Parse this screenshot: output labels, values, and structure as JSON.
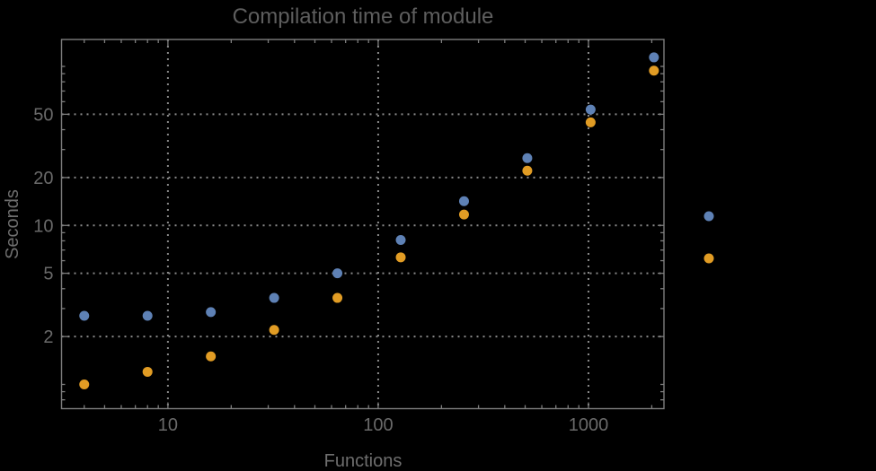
{
  "title": "Compilation time of module",
  "colors": {
    "background": "#000000",
    "frame": "#7e7e7e",
    "grid": "#8a8a8a",
    "title_text": "#5e5e5e",
    "tick_label_text": "#6a6a6a",
    "axis_label_text": "#6e6e6e",
    "series_blue": "#5E81B5",
    "series_orange": "#E19C24"
  },
  "chart_data": {
    "type": "scatter",
    "title": "Compilation time of module",
    "xlabel": "Functions",
    "ylabel": "Seconds",
    "x_scale": "log",
    "y_scale": "log",
    "xlim": [
      3.12,
      2286
    ],
    "ylim": [
      0.704,
      147.7
    ],
    "grid": {
      "style": "dotted",
      "x_values": [
        10,
        100,
        1000
      ],
      "y_values": [
        2,
        5,
        10,
        20,
        50
      ]
    },
    "x": [
      4,
      8,
      16,
      32,
      64,
      128,
      256,
      512,
      1024,
      2048
    ],
    "series": [
      {
        "name": "series-blue",
        "color": "#5E81B5",
        "values": [
          2.7,
          2.7,
          2.85,
          3.5,
          5.0,
          8.1,
          14.2,
          26.5,
          53.5,
          114
        ]
      },
      {
        "name": "series-orange",
        "color": "#E19C24",
        "values": [
          1.0,
          1.2,
          1.5,
          2.2,
          3.5,
          6.3,
          11.7,
          22.1,
          44.5,
          94
        ]
      }
    ],
    "x_ticks": [
      {
        "value": 10,
        "label": "10"
      },
      {
        "value": 100,
        "label": "100"
      },
      {
        "value": 1000,
        "label": "1000"
      }
    ],
    "y_ticks": [
      {
        "value": 2,
        "label": "2"
      },
      {
        "value": 5,
        "label": "5"
      },
      {
        "value": 10,
        "label": "10"
      },
      {
        "value": 20,
        "label": "20"
      },
      {
        "value": 50,
        "label": "50"
      }
    ],
    "legend": {
      "position": "right-outside",
      "markers": [
        {
          "color": "#5E81B5",
          "label": ""
        },
        {
          "color": "#E19C24",
          "label": ""
        }
      ]
    },
    "marker_diameter_px": 11
  }
}
